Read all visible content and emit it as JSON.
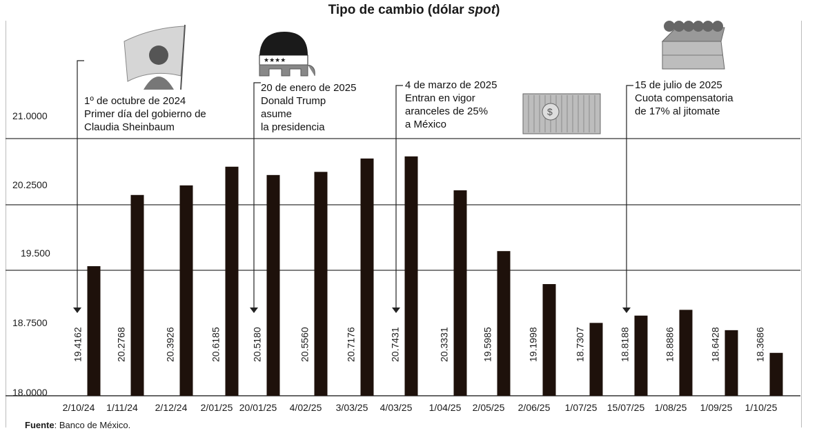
{
  "title_main": "Tipo de cambio (dólar ",
  "title_italic": "spot",
  "title_close": ")",
  "source_label": "Fuente",
  "source_text": ": Banco de México.",
  "annotations": [
    {
      "lines": [
        "1º de octubre de 2024",
        "Primer día del gobierno de",
        "Claudia Sheinbaum"
      ],
      "icon": "flag-woman-illustration"
    },
    {
      "lines": [
        "20 de enero de 2025",
        "Donald Trump",
        "asume",
        "la presidencia"
      ],
      "icon": "elephant-illustration"
    },
    {
      "lines": [
        "4 de marzo de 2025",
        "Entran en vigor",
        "aranceles de 25%",
        "a México"
      ],
      "icon": "container-illustration"
    },
    {
      "lines": [
        "15 de julio de 2025",
        "Cuota compensatoria",
        "de 17% al jitomate"
      ],
      "icon": "crate-illustration"
    }
  ],
  "colors": {
    "bar": "#1e110b",
    "grid": "#333333",
    "text": "#1a1a1a"
  },
  "chart_data": {
    "type": "bar",
    "title": "Tipo de cambio (dólar spot)",
    "xlabel": "",
    "ylabel": "",
    "ylim": [
      18.0,
      21.0
    ],
    "yticks": [
      "21.0000",
      "20.2500",
      "19.500",
      "18.7500",
      "18.0000"
    ],
    "grid": true,
    "categories": [
      "2/10/24",
      "1/11/24",
      "2/12/24",
      "2/01/25",
      "20/01/25",
      "4/02/25",
      "3/03/25",
      "4/03/25",
      "1/04/25",
      "2/05/25",
      "2/06/25",
      "1/07/25",
      "15/07/25",
      "1/08/25",
      "1/09/25",
      "1/10/25"
    ],
    "values": [
      19.4162,
      20.2768,
      20.3926,
      20.6185,
      20.518,
      20.556,
      20.7176,
      20.7431,
      20.3331,
      19.5985,
      19.1998,
      18.7307,
      18.8188,
      18.8886,
      18.6428,
      18.3686
    ],
    "value_labels": [
      "19.4162",
      "20.2768",
      "20.3926",
      "20.6185",
      "20.5180",
      "20.5560",
      "20.7176",
      "20.7431",
      "20.3331",
      "19.5985",
      "19.1998",
      "18.7307",
      "18.8188",
      "18.8886",
      "18.6428",
      "18.3686"
    ],
    "annotated_categories": [
      "2/10/24",
      "20/01/25",
      "4/03/25",
      "15/07/25"
    ]
  }
}
